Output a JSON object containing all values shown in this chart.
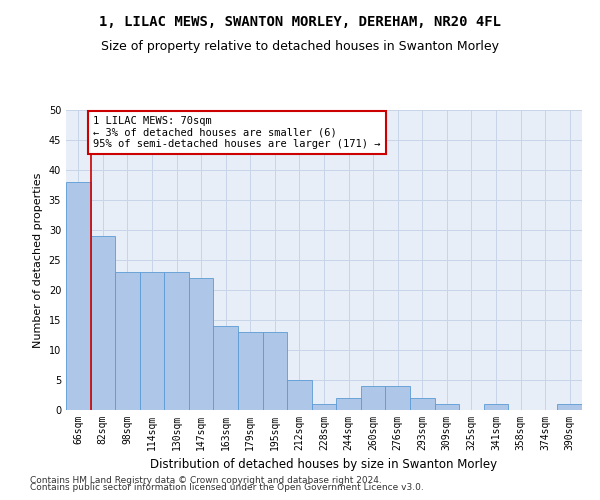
{
  "title1": "1, LILAC MEWS, SWANTON MORLEY, DEREHAM, NR20 4FL",
  "title2": "Size of property relative to detached houses in Swanton Morley",
  "xlabel": "Distribution of detached houses by size in Swanton Morley",
  "ylabel": "Number of detached properties",
  "categories": [
    "66sqm",
    "82sqm",
    "98sqm",
    "114sqm",
    "130sqm",
    "147sqm",
    "163sqm",
    "179sqm",
    "195sqm",
    "212sqm",
    "228sqm",
    "244sqm",
    "260sqm",
    "276sqm",
    "293sqm",
    "309sqm",
    "325sqm",
    "341sqm",
    "358sqm",
    "374sqm",
    "390sqm"
  ],
  "values": [
    38,
    29,
    23,
    23,
    23,
    22,
    14,
    13,
    13,
    5,
    1,
    2,
    4,
    4,
    2,
    1,
    0,
    1,
    0,
    0,
    1
  ],
  "bar_color": "#aec6e8",
  "bar_edge_color": "#5b9bd5",
  "annotation_line1": "1 LILAC MEWS: 70sqm",
  "annotation_line2": "← 3% of detached houses are smaller (6)",
  "annotation_line3": "95% of semi-detached houses are larger (171) →",
  "annotation_box_color": "#ffffff",
  "annotation_box_edge_color": "#cc0000",
  "vline_color": "#cc0000",
  "vline_x": 0.5,
  "ylim": [
    0,
    50
  ],
  "yticks": [
    0,
    5,
    10,
    15,
    20,
    25,
    30,
    35,
    40,
    45,
    50
  ],
  "grid_color": "#c8d4e8",
  "bg_color": "#e8eef8",
  "footer1": "Contains HM Land Registry data © Crown copyright and database right 2024.",
  "footer2": "Contains public sector information licensed under the Open Government Licence v3.0.",
  "title1_fontsize": 10,
  "title2_fontsize": 9,
  "xlabel_fontsize": 8.5,
  "ylabel_fontsize": 8,
  "tick_fontsize": 7,
  "annotation_fontsize": 7.5,
  "footer_fontsize": 6.5
}
